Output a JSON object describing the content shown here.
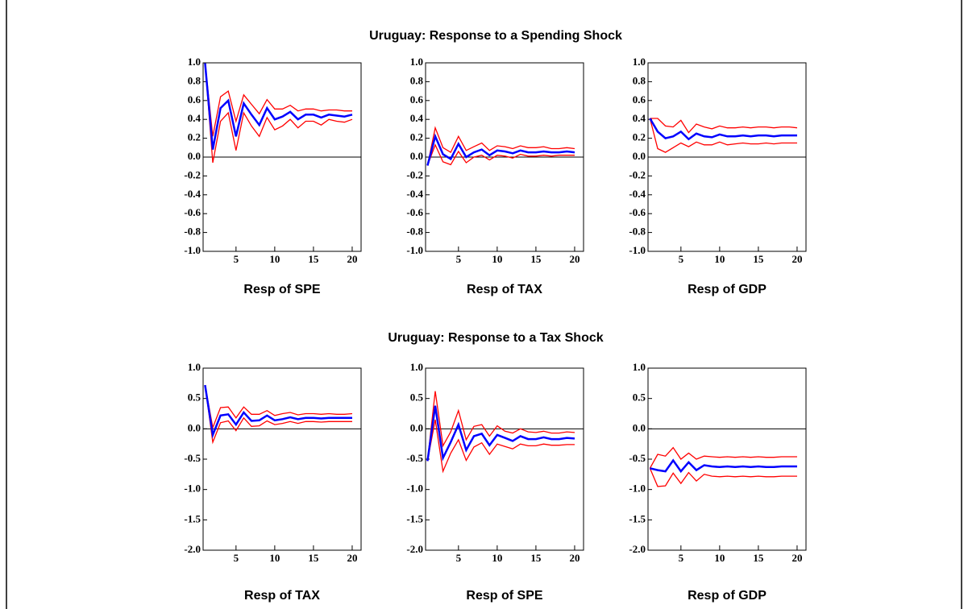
{
  "chart_data": [
    {
      "type": "line",
      "title": "Uruguay: Response to a Spending Shock",
      "xlabel": "Resp of  SPE",
      "x": [
        1,
        2,
        3,
        4,
        5,
        6,
        7,
        8,
        9,
        10,
        11,
        12,
        13,
        14,
        15,
        16,
        17,
        18,
        19,
        20
      ],
      "series": [
        {
          "color": "#ff0000",
          "values": [
            1.0,
            0.22,
            0.64,
            0.7,
            0.38,
            0.66,
            0.56,
            0.46,
            0.61,
            0.51,
            0.51,
            0.55,
            0.49,
            0.51,
            0.51,
            0.49,
            0.5,
            0.5,
            0.49,
            0.49
          ]
        },
        {
          "color": "#ff0000",
          "values": [
            1.0,
            -0.06,
            0.38,
            0.47,
            0.07,
            0.47,
            0.33,
            0.22,
            0.42,
            0.29,
            0.33,
            0.4,
            0.31,
            0.38,
            0.38,
            0.34,
            0.4,
            0.38,
            0.37,
            0.4
          ]
        },
        {
          "color": "#0000ff",
          "values": [
            1.0,
            0.08,
            0.52,
            0.6,
            0.22,
            0.57,
            0.45,
            0.34,
            0.52,
            0.4,
            0.43,
            0.48,
            0.4,
            0.45,
            0.45,
            0.42,
            0.45,
            0.44,
            0.43,
            0.45
          ]
        }
      ],
      "xlim": [
        0.75,
        21.15
      ],
      "xticks": [
        5,
        10,
        15,
        20
      ],
      "ylim": [
        -1,
        1
      ],
      "yticks": [
        {
          "value": 1,
          "label": "1.0"
        },
        0.8,
        0.6,
        0.4,
        0.2,
        {
          "value": 0,
          "label": "0.0"
        },
        -0.2,
        -0.4,
        -0.6,
        -0.8,
        {
          "value": -1,
          "label": "-1.0"
        }
      ]
    },
    {
      "type": "line",
      "xlabel": "Resp of  TAX",
      "x": [
        1,
        2,
        3,
        4,
        5,
        6,
        7,
        8,
        9,
        10,
        11,
        12,
        13,
        14,
        15,
        16,
        17,
        18,
        19,
        20
      ],
      "series": [
        {
          "color": "#ff0000",
          "values": [
            -0.09,
            0.31,
            0.1,
            0.05,
            0.22,
            0.07,
            0.11,
            0.15,
            0.07,
            0.12,
            0.11,
            0.09,
            0.12,
            0.1,
            0.1,
            0.11,
            0.09,
            0.09,
            0.1,
            0.09
          ]
        },
        {
          "color": "#ff0000",
          "values": [
            -0.09,
            0.13,
            -0.05,
            -0.08,
            0.06,
            -0.06,
            0.0,
            0.02,
            -0.03,
            0.02,
            0.01,
            -0.01,
            0.03,
            0.01,
            0.01,
            0.02,
            0.01,
            0.02,
            0.02,
            0.02
          ]
        },
        {
          "color": "#0000ff",
          "values": [
            -0.09,
            0.22,
            0.03,
            -0.02,
            0.14,
            0.0,
            0.05,
            0.08,
            0.02,
            0.07,
            0.06,
            0.04,
            0.07,
            0.05,
            0.05,
            0.06,
            0.05,
            0.05,
            0.06,
            0.05
          ]
        }
      ],
      "xlim": [
        0.75,
        21.15
      ],
      "xticks": [
        5,
        10,
        15,
        20
      ],
      "ylim": [
        -1,
        1
      ],
      "yticks": [
        {
          "value": 1,
          "label": "1.0"
        },
        0.8,
        0.6,
        0.4,
        0.2,
        {
          "value": 0,
          "label": "0.0"
        },
        -0.2,
        -0.4,
        -0.6,
        -0.8,
        {
          "value": -1,
          "label": "-1.0"
        }
      ]
    },
    {
      "type": "line",
      "xlabel": "Resp of  GDP",
      "x": [
        1,
        2,
        3,
        4,
        5,
        6,
        7,
        8,
        9,
        10,
        11,
        12,
        13,
        14,
        15,
        16,
        17,
        18,
        19,
        20
      ],
      "series": [
        {
          "color": "#ff0000",
          "values": [
            0.41,
            0.41,
            0.33,
            0.32,
            0.39,
            0.26,
            0.35,
            0.32,
            0.3,
            0.33,
            0.31,
            0.31,
            0.32,
            0.31,
            0.32,
            0.32,
            0.31,
            0.32,
            0.32,
            0.31
          ]
        },
        {
          "color": "#ff0000",
          "values": [
            0.41,
            0.09,
            0.05,
            0.1,
            0.15,
            0.11,
            0.16,
            0.13,
            0.13,
            0.16,
            0.13,
            0.14,
            0.15,
            0.14,
            0.14,
            0.15,
            0.14,
            0.15,
            0.15,
            0.15
          ]
        },
        {
          "color": "#0000ff",
          "values": [
            0.41,
            0.27,
            0.2,
            0.22,
            0.27,
            0.19,
            0.25,
            0.22,
            0.21,
            0.24,
            0.22,
            0.22,
            0.23,
            0.22,
            0.23,
            0.23,
            0.22,
            0.23,
            0.23,
            0.23
          ]
        }
      ],
      "xlim": [
        0.75,
        21.15
      ],
      "xticks": [
        5,
        10,
        15,
        20
      ],
      "ylim": [
        -1,
        1
      ],
      "yticks": [
        {
          "value": 1,
          "label": "1.0"
        },
        0.8,
        0.6,
        0.4,
        0.2,
        {
          "value": 0,
          "label": "0.0"
        },
        -0.2,
        -0.4,
        -0.6,
        -0.8,
        {
          "value": -1,
          "label": "-1.0"
        }
      ]
    },
    {
      "type": "line",
      "title": "Uruguay: Response to a Tax Shock",
      "xlabel": "Resp of  TAX",
      "x": [
        1,
        2,
        3,
        4,
        5,
        6,
        7,
        8,
        9,
        10,
        11,
        12,
        13,
        14,
        15,
        16,
        17,
        18,
        19,
        20
      ],
      "series": [
        {
          "color": "#ff0000",
          "values": [
            0.72,
            0.02,
            0.35,
            0.36,
            0.18,
            0.36,
            0.24,
            0.24,
            0.3,
            0.22,
            0.25,
            0.27,
            0.23,
            0.25,
            0.25,
            0.24,
            0.25,
            0.24,
            0.24,
            0.25
          ]
        },
        {
          "color": "#ff0000",
          "values": [
            0.72,
            -0.22,
            0.1,
            0.13,
            -0.03,
            0.18,
            0.04,
            0.05,
            0.13,
            0.07,
            0.09,
            0.12,
            0.09,
            0.12,
            0.12,
            0.11,
            0.12,
            0.12,
            0.12,
            0.12
          ]
        },
        {
          "color": "#0000ff",
          "values": [
            0.72,
            -0.1,
            0.22,
            0.24,
            0.07,
            0.27,
            0.13,
            0.14,
            0.22,
            0.14,
            0.16,
            0.19,
            0.16,
            0.18,
            0.18,
            0.17,
            0.18,
            0.18,
            0.18,
            0.18
          ]
        }
      ],
      "xlim": [
        0.75,
        21.15
      ],
      "xticks": [
        5,
        10,
        15,
        20
      ],
      "ylim": [
        -2,
        1
      ],
      "yticks": [
        {
          "value": 1,
          "label": "1.0"
        },
        0.5,
        {
          "value": 0,
          "label": "0.0"
        },
        -0.5,
        {
          "value": -1,
          "label": "-1.0"
        },
        -1.5,
        {
          "value": -2,
          "label": "-2.0"
        }
      ]
    },
    {
      "type": "line",
      "xlabel": "Resp of  SPE",
      "x": [
        1,
        2,
        3,
        4,
        5,
        6,
        7,
        8,
        9,
        10,
        11,
        12,
        13,
        14,
        15,
        16,
        17,
        18,
        19,
        20
      ],
      "series": [
        {
          "color": "#ff0000",
          "values": [
            -0.53,
            0.62,
            -0.28,
            -0.05,
            0.3,
            -0.18,
            0.04,
            0.07,
            -0.12,
            0.05,
            -0.04,
            -0.07,
            0.0,
            -0.05,
            -0.06,
            -0.04,
            -0.07,
            -0.07,
            -0.05,
            -0.06
          ]
        },
        {
          "color": "#ff0000",
          "values": [
            -0.53,
            0.15,
            -0.7,
            -0.4,
            -0.18,
            -0.52,
            -0.3,
            -0.23,
            -0.42,
            -0.25,
            -0.29,
            -0.33,
            -0.25,
            -0.28,
            -0.28,
            -0.25,
            -0.27,
            -0.27,
            -0.26,
            -0.26
          ]
        },
        {
          "color": "#0000ff",
          "values": [
            -0.53,
            0.38,
            -0.48,
            -0.22,
            0.07,
            -0.35,
            -0.12,
            -0.08,
            -0.27,
            -0.1,
            -0.15,
            -0.2,
            -0.12,
            -0.17,
            -0.17,
            -0.14,
            -0.17,
            -0.17,
            -0.15,
            -0.16
          ]
        }
      ],
      "xlim": [
        0.75,
        21.15
      ],
      "xticks": [
        5,
        10,
        15,
        20
      ],
      "ylim": [
        -2,
        1
      ],
      "yticks": [
        {
          "value": 1,
          "label": "1.0"
        },
        0.5,
        {
          "value": 0,
          "label": "0.0"
        },
        -0.5,
        {
          "value": -1,
          "label": "-1.0"
        },
        -1.5,
        {
          "value": -2,
          "label": "-2.0"
        }
      ]
    },
    {
      "type": "line",
      "xlabel": "Resp of  GDP",
      "x": [
        1,
        2,
        3,
        4,
        5,
        6,
        7,
        8,
        9,
        10,
        11,
        12,
        13,
        14,
        15,
        16,
        17,
        18,
        19,
        20
      ],
      "series": [
        {
          "color": "#ff0000",
          "values": [
            -0.65,
            -0.42,
            -0.45,
            -0.31,
            -0.5,
            -0.4,
            -0.5,
            -0.45,
            -0.46,
            -0.47,
            -0.46,
            -0.47,
            -0.46,
            -0.47,
            -0.46,
            -0.47,
            -0.47,
            -0.46,
            -0.46,
            -0.46
          ]
        },
        {
          "color": "#ff0000",
          "values": [
            -0.65,
            -0.95,
            -0.94,
            -0.73,
            -0.9,
            -0.72,
            -0.86,
            -0.75,
            -0.78,
            -0.79,
            -0.78,
            -0.79,
            -0.78,
            -0.79,
            -0.78,
            -0.79,
            -0.79,
            -0.78,
            -0.78,
            -0.78
          ]
        },
        {
          "color": "#0000ff",
          "values": [
            -0.65,
            -0.68,
            -0.7,
            -0.52,
            -0.7,
            -0.55,
            -0.68,
            -0.6,
            -0.62,
            -0.63,
            -0.62,
            -0.63,
            -0.62,
            -0.63,
            -0.62,
            -0.63,
            -0.63,
            -0.62,
            -0.62,
            -0.62
          ]
        }
      ],
      "xlim": [
        0.75,
        21.15
      ],
      "xticks": [
        5,
        10,
        15,
        20
      ],
      "ylim": [
        -2,
        1
      ],
      "yticks": [
        {
          "value": 1,
          "label": "1.0"
        },
        0.5,
        {
          "value": 0,
          "label": "0.0"
        },
        -0.5,
        {
          "value": -1,
          "label": "-1.0"
        },
        -1.5,
        {
          "value": -2,
          "label": "-2.0"
        }
      ]
    }
  ]
}
